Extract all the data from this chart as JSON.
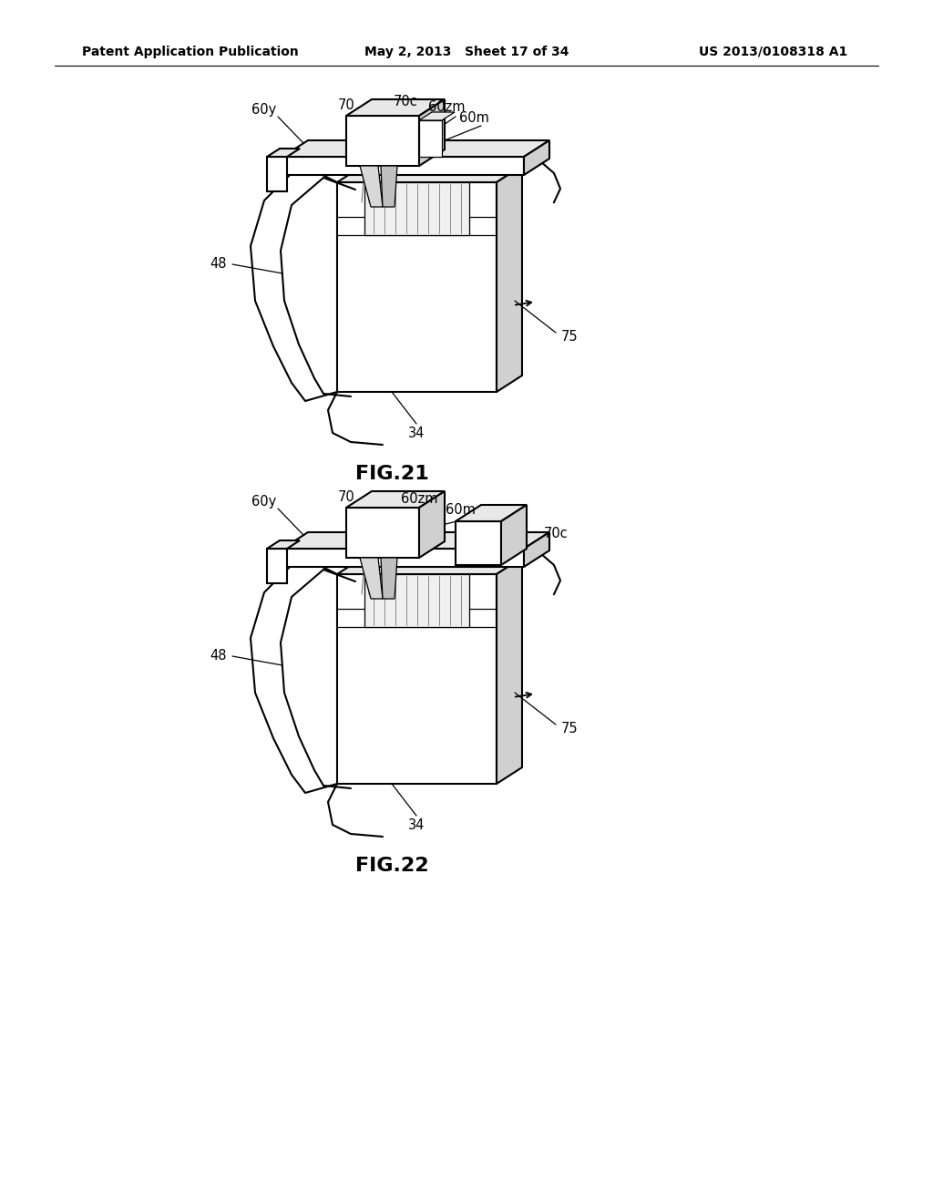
{
  "background_color": "#ffffff",
  "header_left": "Patent Application Publication",
  "header_center": "May 2, 2013   Sheet 17 of 34",
  "header_right": "US 2013/0108318 A1",
  "fig21_label": "FIG.21",
  "fig22_label": "FIG.22",
  "line_color": "#000000",
  "line_width": 1.5,
  "gray_light": "#e8e8e8",
  "gray_mid": "#d0d0d0",
  "gray_dark": "#b0b0b0"
}
